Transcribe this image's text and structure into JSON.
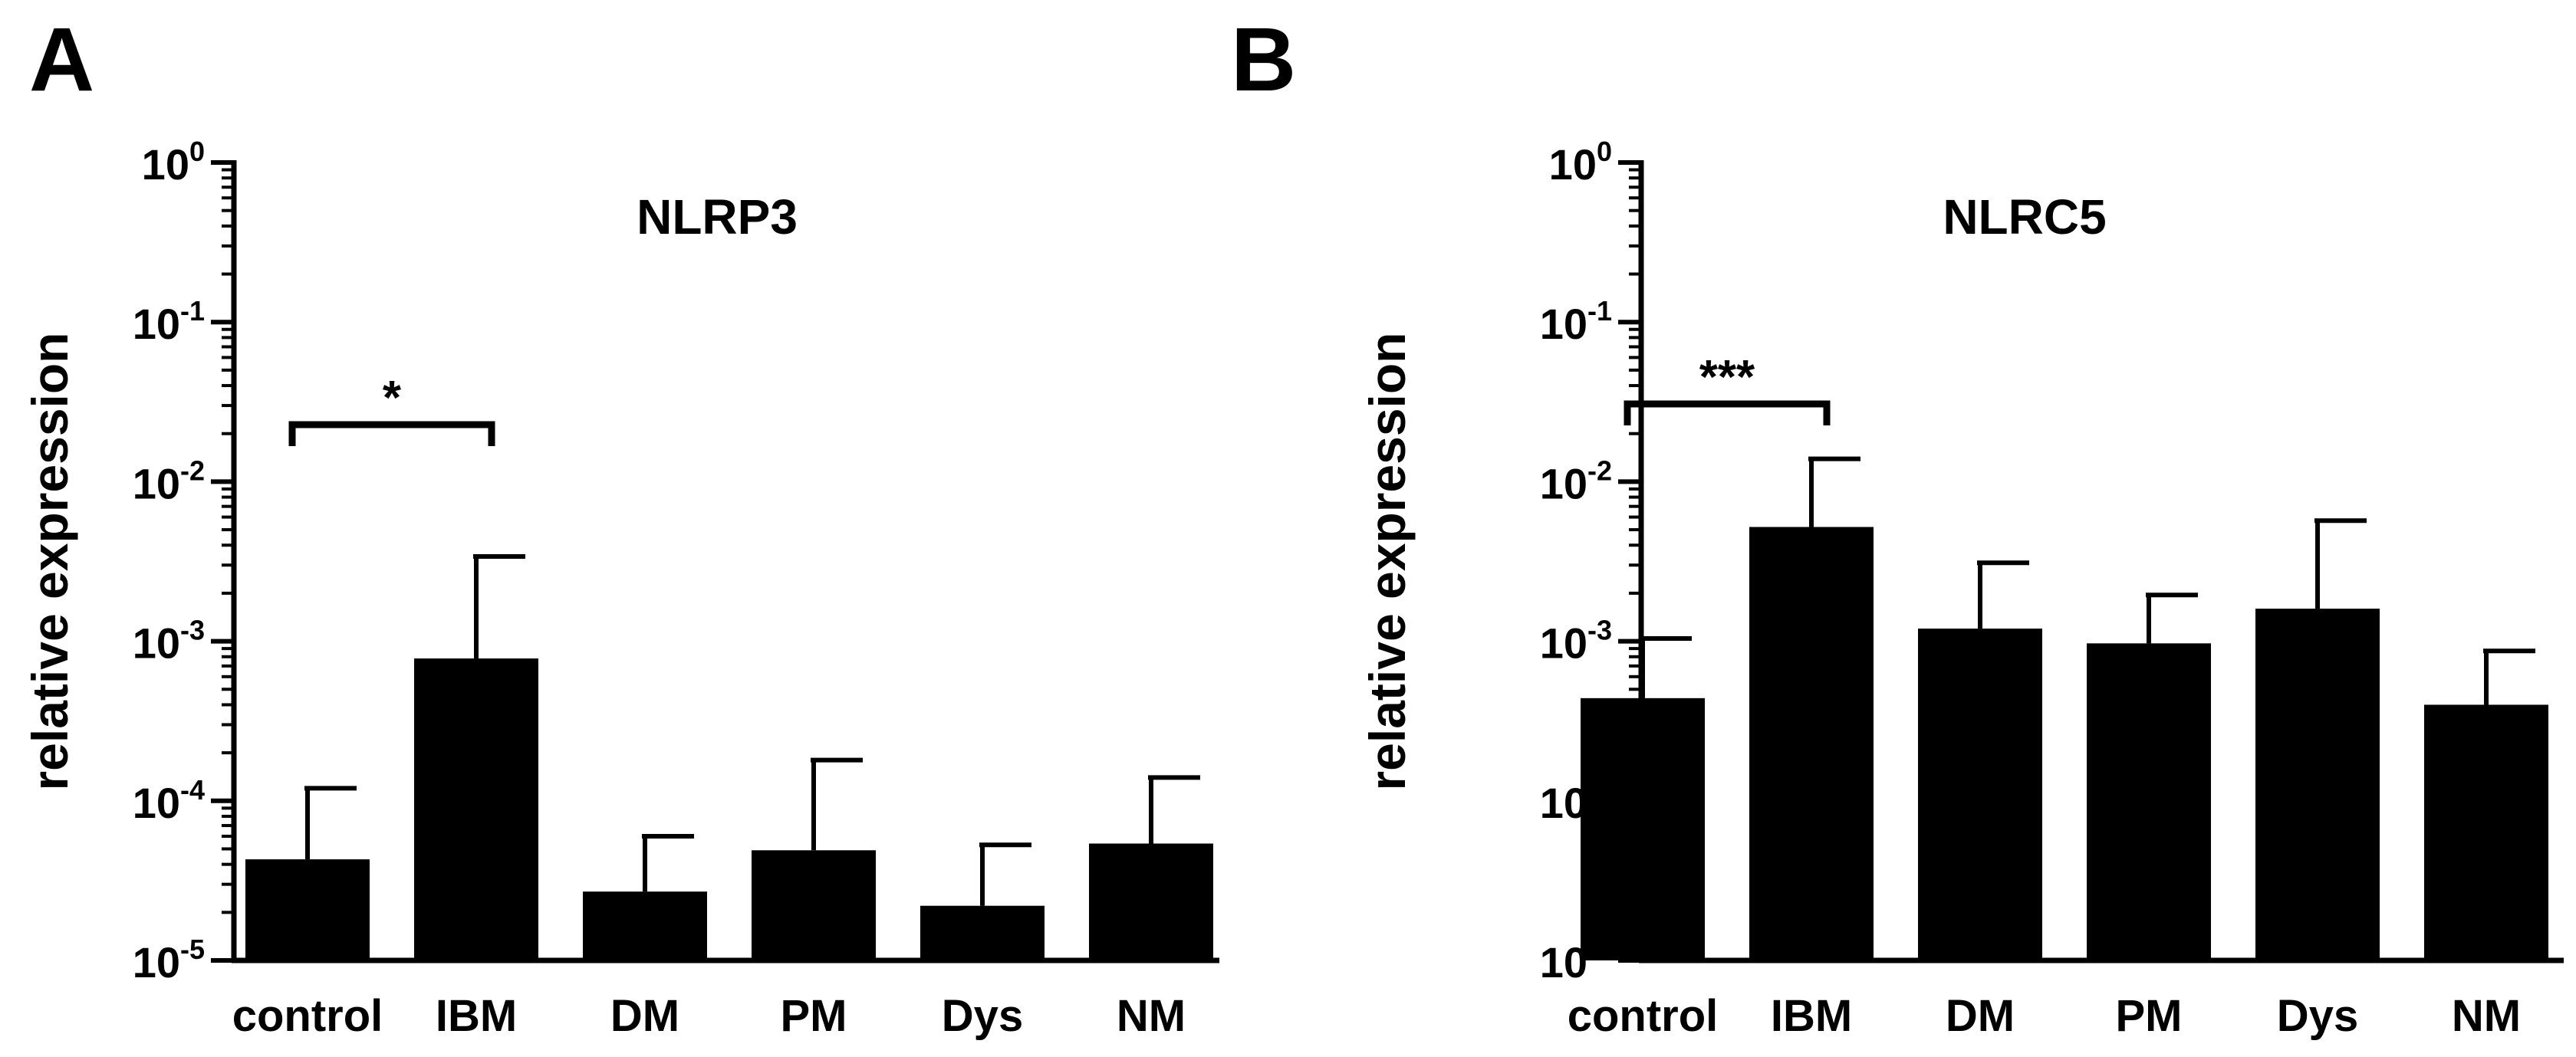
{
  "chart_data": [
    {
      "panel": "A",
      "type": "bar",
      "title": "NLRP3",
      "ylabel": "relative expression",
      "yscale": "log",
      "ylim": [
        1e-05,
        1
      ],
      "yticks": [
        {
          "base": "10",
          "exp": "-5"
        },
        {
          "base": "10",
          "exp": "-4"
        },
        {
          "base": "10",
          "exp": "-3"
        },
        {
          "base": "10",
          "exp": "-2"
        },
        {
          "base": "10",
          "exp": "-1"
        },
        {
          "base": "10",
          "exp": "0"
        }
      ],
      "categories": [
        "control",
        "IBM",
        "DM",
        "PM",
        "Dys",
        "NM"
      ],
      "values": [
        4.3e-05,
        0.00078,
        2.7e-05,
        4.9e-05,
        2.2e-05,
        5.4e-05
      ],
      "error_upper": [
        0.00012,
        0.0034,
        6e-05,
        0.00018,
        5.3e-05,
        0.00014
      ],
      "significance": [
        {
          "from": "control",
          "to": "IBM",
          "label": "*"
        }
      ],
      "bar_color": "#000000"
    },
    {
      "panel": "B",
      "type": "bar",
      "title": "NLRC5",
      "ylabel": "relative expression",
      "yscale": "log",
      "ylim": [
        1e-05,
        1
      ],
      "yticks": [
        {
          "base": "10",
          "exp": "-5"
        },
        {
          "base": "10",
          "exp": "-4"
        },
        {
          "base": "10",
          "exp": "-3"
        },
        {
          "base": "10",
          "exp": "-2"
        },
        {
          "base": "10",
          "exp": "-1"
        },
        {
          "base": "10",
          "exp": "0"
        }
      ],
      "categories": [
        "control",
        "IBM",
        "DM",
        "PM",
        "Dys",
        "NM"
      ],
      "values": [
        0.00044,
        0.0052,
        0.0012,
        0.00097,
        0.0016,
        0.0004
      ],
      "error_upper": [
        0.00104,
        0.0139,
        0.0031,
        0.00195,
        0.0057,
        0.00087
      ],
      "significance": [
        {
          "from": "control",
          "to": "IBM",
          "label": "***"
        }
      ],
      "bar_color": "#000000"
    }
  ]
}
